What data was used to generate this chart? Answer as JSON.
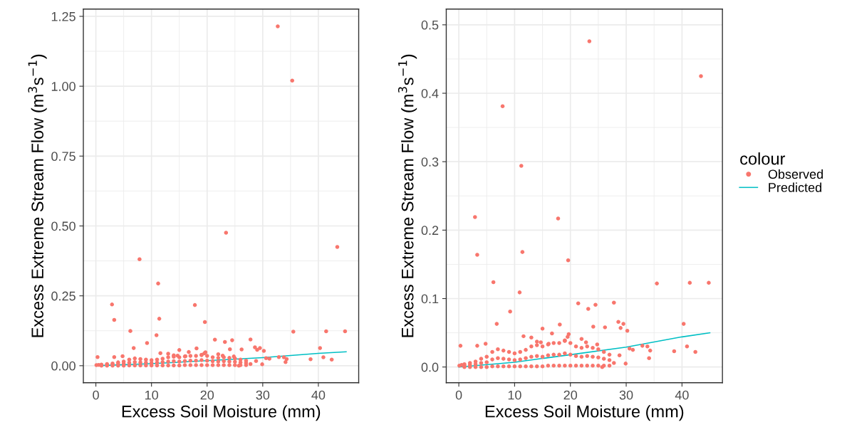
{
  "chart_data": [
    {
      "type": "scatter",
      "xlabel": "Excess Soil Moisture (mm)",
      "ylabel": "Excess Extreme Stream Flow (m$^{3}$s$^{−1}$)",
      "xlim": [
        -2.25,
        47.25
      ],
      "ylim": [
        -0.061,
        1.276
      ],
      "xticks": [
        0,
        10,
        20,
        30,
        40
      ],
      "yticks": [
        {
          "value": 0,
          "label": "0.00"
        },
        {
          "value": 0.25,
          "label": "0.25"
        },
        {
          "value": 0.5,
          "label": "0.50"
        },
        {
          "value": 0.75,
          "label": "0.75"
        },
        {
          "value": 1.0,
          "label": "1.00"
        },
        {
          "value": 1.25,
          "label": "1.25"
        }
      ],
      "grid": true,
      "series": [
        {
          "color": "#f8766d",
          "marker": "circle",
          "x": [
            32.7,
            35.3,
            7.85,
            11.2,
            23.4,
            43.4,
            2.9,
            17.8,
            3.3,
            11.4,
            19.6,
            6.2,
            10.9,
            35.5,
            41.4,
            44.8,
            9.2,
            21.4,
            24.5,
            23.2,
            27.8,
            6.8,
            18.1,
            40.3,
            28.6,
            29.5,
            29.0,
            30.2,
            15.0,
            26.2,
            24.1,
            16.7,
            19.7,
            11.6,
            13.0,
            0.3,
            3.3,
            4.8,
            32.9,
            33.8,
            34.3,
            34.1,
            38.6,
            40.9,
            42.4,
            30.6,
            31.2,
            29.9,
            27.8,
            25.7,
            28.8,
            22.0,
            22.8,
            24.8,
            14.0,
            14.7,
            16.1,
            19.0,
            19.5,
            0.1,
            0.5,
            1,
            1,
            1,
            2,
            2,
            2,
            3,
            3,
            3,
            4,
            4,
            4,
            5,
            5,
            5,
            6,
            6,
            6,
            7,
            7,
            7,
            8,
            8,
            8,
            9,
            9,
            9,
            10,
            10,
            10,
            11,
            11,
            11,
            12,
            12,
            12,
            13,
            13,
            13,
            14,
            14,
            14,
            15,
            15,
            15,
            16,
            16,
            16,
            17,
            17,
            17,
            18,
            18,
            18,
            19,
            19,
            19,
            20,
            20,
            20,
            21,
            21,
            21,
            22,
            22,
            22,
            23,
            23,
            23,
            24,
            24,
            24,
            25,
            25,
            25,
            26,
            26,
            26,
            27,
            27,
            27
          ],
          "values": [
            1.214,
            1.02,
            0.381,
            0.294,
            0.476,
            0.425,
            0.219,
            0.217,
            0.164,
            0.168,
            0.156,
            0.124,
            0.109,
            0.122,
            0.123,
            0.123,
            0.081,
            0.093,
            0.091,
            0.085,
            0.094,
            0.063,
            0.062,
            0.063,
            0.066,
            0.063,
            0.057,
            0.053,
            0.056,
            0.058,
            0.059,
            0.049,
            0.048,
            0.045,
            0.043,
            0.031,
            0.031,
            0.034,
            0.031,
            0.03,
            0.024,
            0.013,
            0.023,
            0.03,
            0.022,
            0.027,
            0.025,
            0.005,
            0.006,
            0.0,
            0.017,
            0.041,
            0.036,
            0.033,
            0.037,
            0.036,
            0.034,
            0.039,
            0.044,
            0.002,
            0.003,
            0.004,
            0.002,
            0.0,
            0.006,
            0.003,
            0.0,
            0.008,
            0.004,
            0.0,
            0.012,
            0.006,
            0.0,
            0.015,
            0.007,
            0.0,
            0.022,
            0.011,
            0.001,
            0.026,
            0.013,
            0.001,
            0.024,
            0.012,
            0.001,
            0.022,
            0.011,
            0.001,
            0.02,
            0.01,
            0.001,
            0.022,
            0.011,
            0.001,
            0.025,
            0.013,
            0.001,
            0.03,
            0.015,
            0.001,
            0.032,
            0.016,
            0.001,
            0.03,
            0.015,
            0.001,
            0.033,
            0.017,
            0.002,
            0.035,
            0.018,
            0.002,
            0.035,
            0.018,
            0.002,
            0.038,
            0.02,
            0.002,
            0.035,
            0.018,
            0.002,
            0.03,
            0.016,
            0.002,
            0.028,
            0.015,
            0.002,
            0.03,
            0.016,
            0.002,
            0.028,
            0.015,
            0.002,
            0.026,
            0.014,
            0.002,
            0.022,
            0.012,
            0.002,
            0.018,
            0.01,
            0.002
          ]
        },
        {
          "type": "line",
          "color": "#00bfc4",
          "line_style": "solid",
          "x": [
            0,
            10,
            20,
            30,
            40,
            45
          ],
          "values": [
            0.0,
            0.007,
            0.018,
            0.029,
            0.044,
            0.05
          ]
        }
      ]
    },
    {
      "type": "scatter",
      "xlabel": "Excess Soil Moisture (mm)",
      "ylabel": "Excess Extreme Stream Flow (m$^{3}$s$^{−1}$)",
      "legend_title": "colour",
      "xlim": [
        -2.25,
        47.25
      ],
      "ylim": [
        -0.023,
        0.523
      ],
      "xticks": [
        0,
        10,
        20,
        30,
        40
      ],
      "yticks": [
        {
          "value": 0,
          "label": "0.0"
        },
        {
          "value": 0.1,
          "label": "0.1"
        },
        {
          "value": 0.2,
          "label": "0.2"
        },
        {
          "value": 0.3,
          "label": "0.3"
        },
        {
          "value": 0.4,
          "label": "0.4"
        },
        {
          "value": 0.5,
          "label": "0.5"
        }
      ],
      "grid": true,
      "legend": "right",
      "series": [
        {
          "name": "Observed",
          "color": "#f8766d",
          "marker": "circle",
          "x": [
            7.85,
            11.2,
            23.4,
            43.4,
            2.9,
            17.8,
            3.3,
            11.4,
            19.6,
            6.2,
            10.9,
            35.5,
            41.4,
            44.8,
            9.2,
            21.4,
            24.5,
            23.2,
            27.8,
            6.8,
            18.1,
            40.3,
            28.6,
            29.5,
            29.0,
            30.2,
            15.0,
            26.2,
            24.1,
            16.7,
            19.7,
            11.6,
            13.0,
            0.3,
            3.3,
            4.8,
            32.9,
            33.8,
            34.3,
            34.1,
            38.6,
            40.9,
            42.4,
            30.6,
            31.2,
            29.9,
            27.8,
            25.7,
            28.8,
            22.0,
            22.8,
            24.8,
            14.0,
            14.7,
            16.1,
            19.0,
            19.5,
            0.1,
            0.5,
            1,
            1,
            1,
            2,
            2,
            2,
            3,
            3,
            3,
            4,
            4,
            4,
            5,
            5,
            5,
            6,
            6,
            6,
            7,
            7,
            7,
            8,
            8,
            8,
            9,
            9,
            9,
            10,
            10,
            10,
            11,
            11,
            11,
            12,
            12,
            12,
            13,
            13,
            13,
            14,
            14,
            14,
            15,
            15,
            15,
            16,
            16,
            16,
            17,
            17,
            17,
            18,
            18,
            18,
            19,
            19,
            19,
            20,
            20,
            20,
            21,
            21,
            21,
            22,
            22,
            22,
            23,
            23,
            23,
            24,
            24,
            24,
            25,
            25,
            25,
            26,
            26,
            26,
            27,
            27,
            27
          ],
          "values": [
            0.381,
            0.294,
            0.476,
            0.425,
            0.219,
            0.217,
            0.164,
            0.168,
            0.156,
            0.124,
            0.109,
            0.122,
            0.123,
            0.123,
            0.081,
            0.093,
            0.091,
            0.085,
            0.094,
            0.063,
            0.062,
            0.063,
            0.066,
            0.063,
            0.057,
            0.053,
            0.056,
            0.058,
            0.059,
            0.049,
            0.048,
            0.045,
            0.043,
            0.031,
            0.031,
            0.034,
            0.031,
            0.03,
            0.024,
            0.013,
            0.023,
            0.03,
            0.022,
            0.027,
            0.025,
            0.005,
            0.006,
            0.0,
            0.017,
            0.041,
            0.036,
            0.033,
            0.037,
            0.036,
            0.034,
            0.039,
            0.044,
            0.002,
            0.003,
            0.004,
            0.002,
            0.0,
            0.006,
            0.003,
            0.0,
            0.008,
            0.004,
            0.0,
            0.012,
            0.006,
            0.0,
            0.015,
            0.007,
            0.0,
            0.022,
            0.011,
            0.001,
            0.026,
            0.013,
            0.001,
            0.024,
            0.012,
            0.001,
            0.022,
            0.011,
            0.001,
            0.02,
            0.01,
            0.001,
            0.022,
            0.011,
            0.001,
            0.025,
            0.013,
            0.001,
            0.03,
            0.015,
            0.001,
            0.032,
            0.016,
            0.001,
            0.03,
            0.015,
            0.001,
            0.033,
            0.017,
            0.002,
            0.035,
            0.018,
            0.002,
            0.035,
            0.018,
            0.002,
            0.038,
            0.02,
            0.002,
            0.035,
            0.018,
            0.002,
            0.03,
            0.016,
            0.002,
            0.028,
            0.015,
            0.002,
            0.03,
            0.016,
            0.002,
            0.028,
            0.015,
            0.002,
            0.026,
            0.014,
            0.002,
            0.022,
            0.012,
            0.002,
            0.018,
            0.01,
            0.002
          ]
        },
        {
          "name": "Predicted",
          "type": "line",
          "color": "#00bfc4",
          "line_style": "solid",
          "x": [
            0,
            10,
            20,
            30,
            40,
            45
          ],
          "values": [
            0.0,
            0.007,
            0.018,
            0.029,
            0.044,
            0.05
          ]
        }
      ]
    }
  ]
}
